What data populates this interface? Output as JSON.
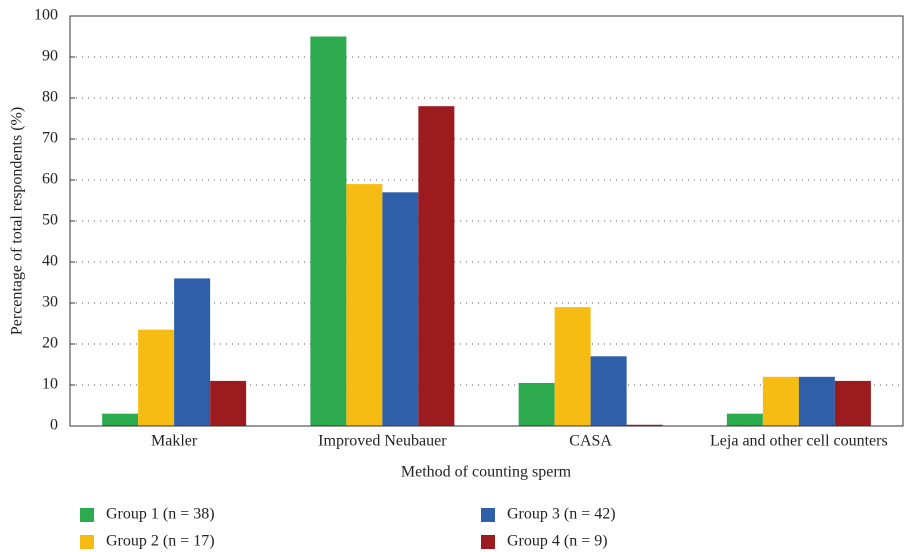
{
  "chart_data": {
    "type": "bar",
    "x_label": "Method of counting sperm",
    "y_label": "Percentage of total respondents (%)",
    "categories": [
      "Makler",
      "Improved Neubauer",
      "CASA",
      "Leja and other cell counters"
    ],
    "series": [
      {
        "name": "Group 1 (n = 38)",
        "color": "#2eaa4e",
        "values": [
          3,
          95,
          10.5,
          3
        ]
      },
      {
        "name": "Group 2 (n = 17)",
        "color": "#f7bc14",
        "values": [
          23.5,
          59,
          29,
          12
        ]
      },
      {
        "name": "Group 3 (n = 42)",
        "color": "#2e5fa8",
        "values": [
          36,
          57,
          17,
          12
        ]
      },
      {
        "name": "Group 4 (n = 9)",
        "color": "#9b1b1f",
        "values": [
          11,
          78,
          0.3,
          11
        ]
      }
    ],
    "ylim": [
      0,
      100
    ],
    "yticks": [
      0,
      10,
      20,
      30,
      40,
      50,
      60,
      70,
      80,
      90,
      100
    ],
    "grid": true
  }
}
